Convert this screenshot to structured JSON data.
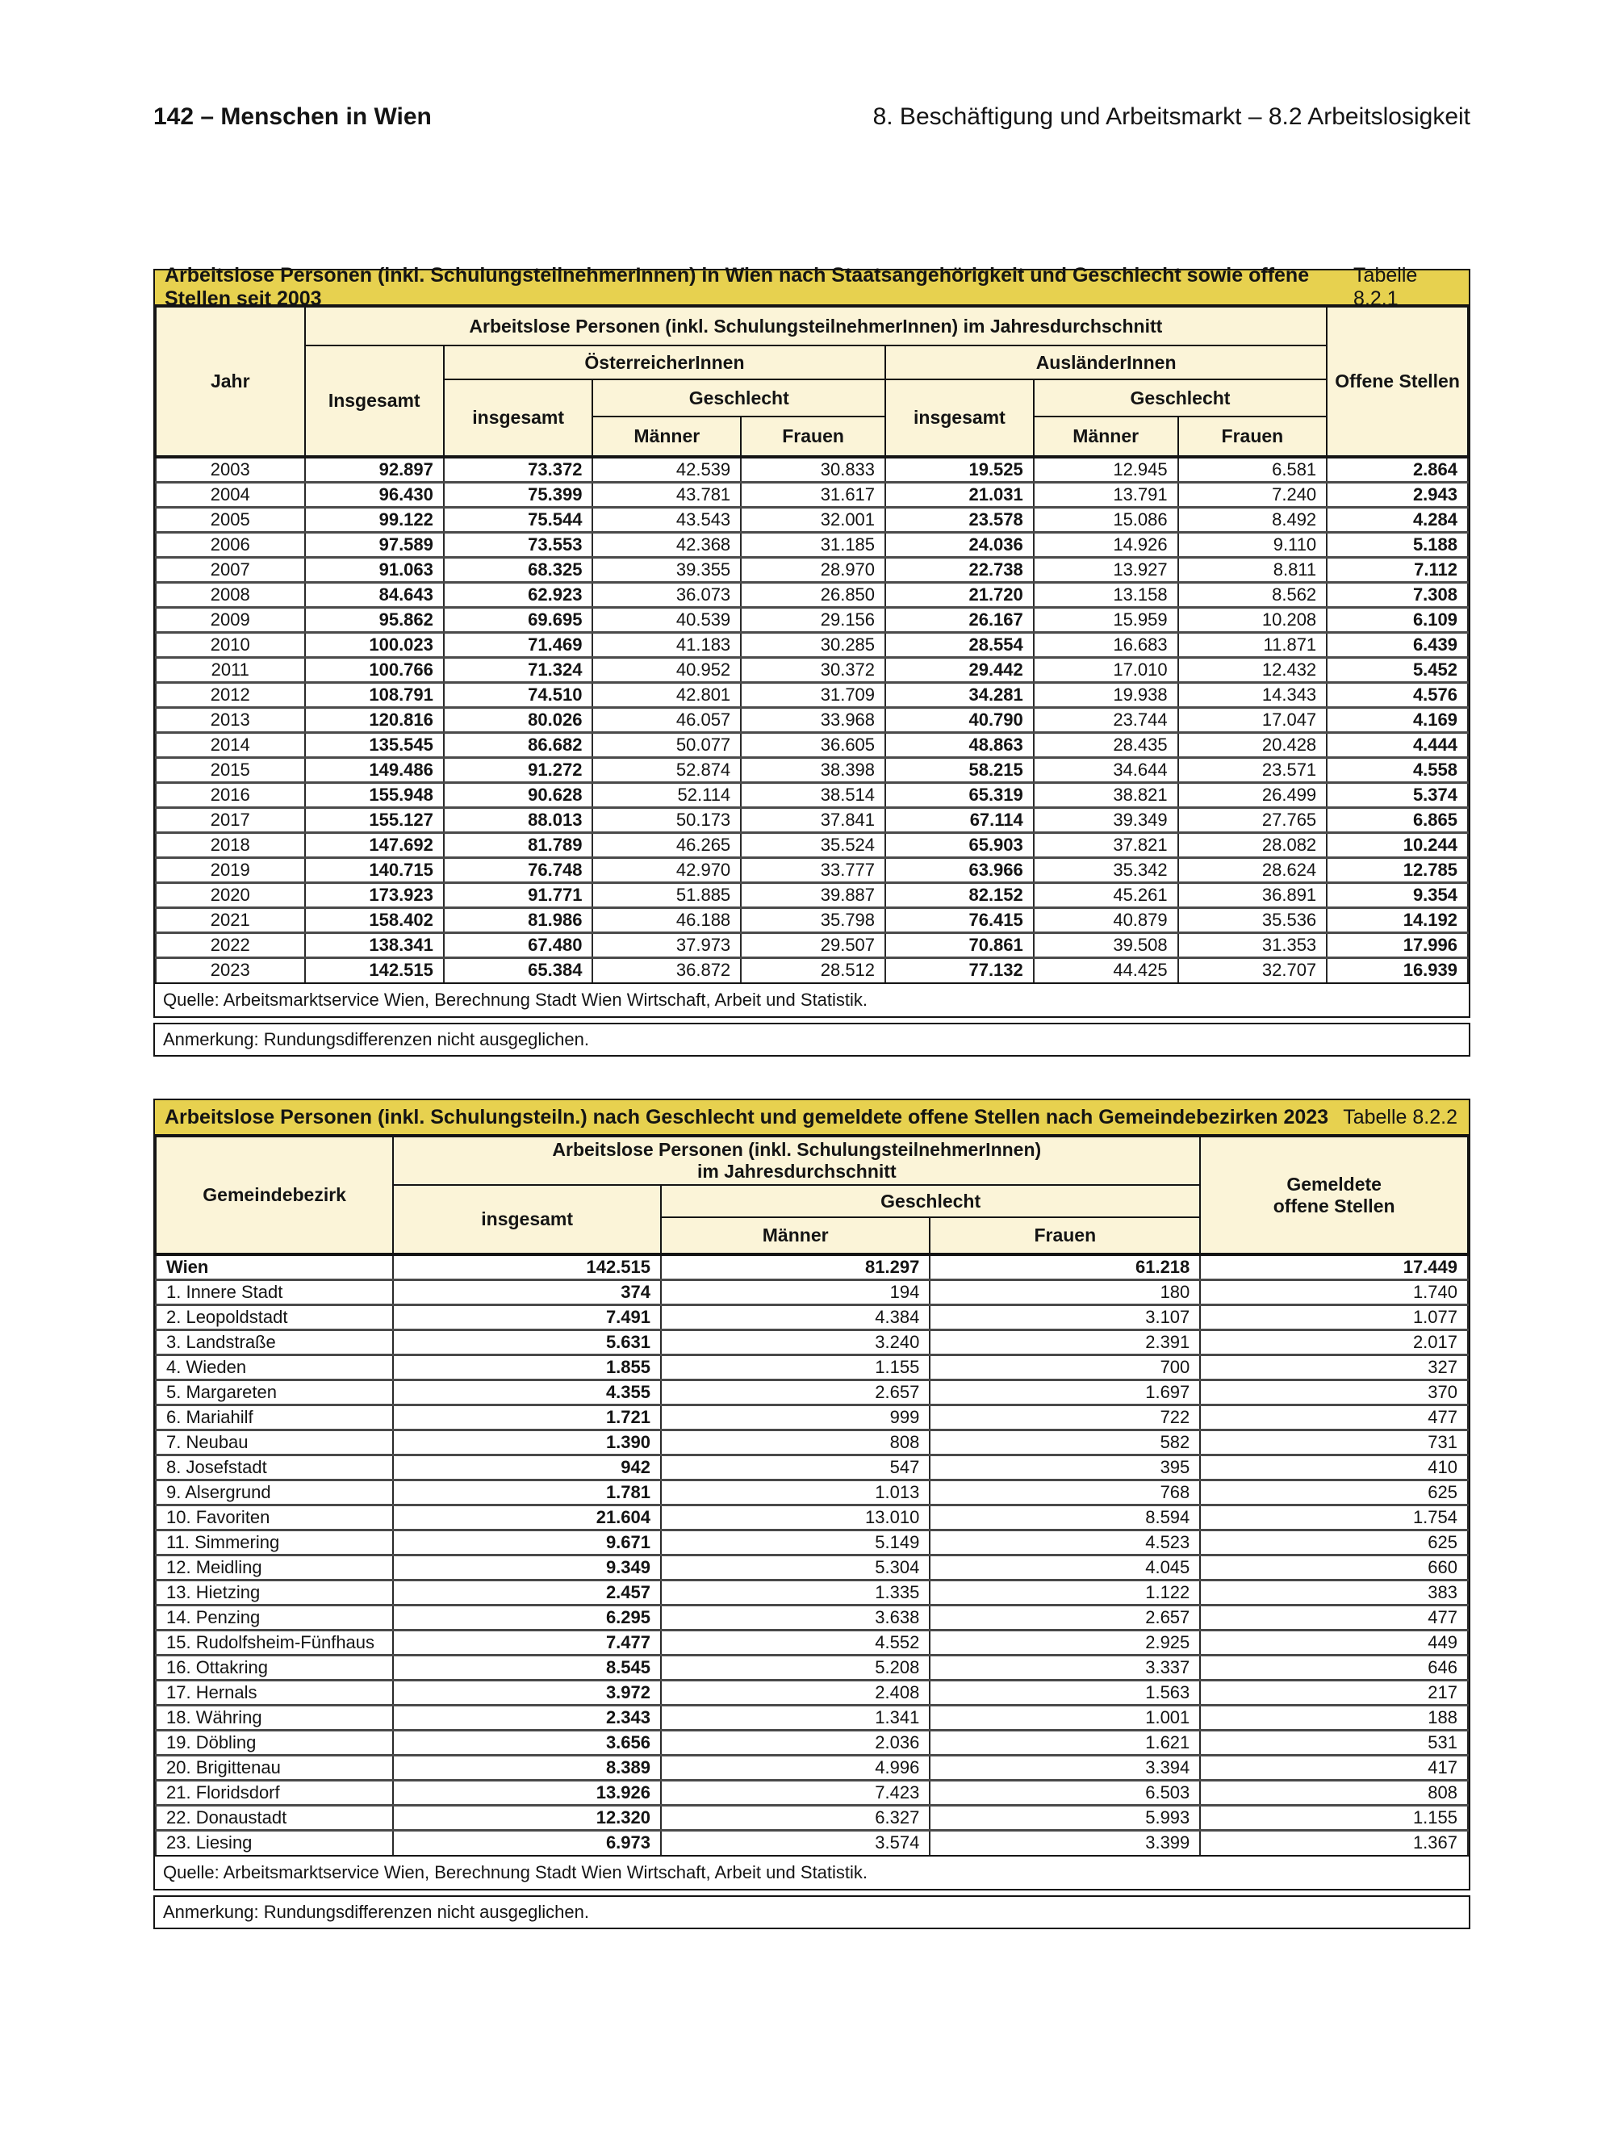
{
  "page": {
    "header_left": "142 – Menschen in Wien",
    "header_right": "8. Beschäftigung und Arbeitsmarkt – 8.2 Arbeitslosigkeit"
  },
  "colors": {
    "title_bar_yellow": "#E7D14F",
    "header_cream": "#FBF4D8"
  },
  "table1": {
    "title": "Arbeitslose Personen (inkl. SchulungsteilnehmerInnen) in Wien nach Staatsangehörigkeit und Geschlecht sowie offene Stellen seit 2003",
    "tag": "Tabelle 8.2.1",
    "headers": {
      "jahr": "Jahr",
      "span_main": "Arbeitslose Personen (inkl. SchulungsteilnehmerInnen) im Jahresdurchschnitt",
      "insgesamt": "Insgesamt",
      "oesterreicher": "ÖsterreicherInnen",
      "auslaender": "AusländerInnen",
      "sub_insgesamt": "insgesamt",
      "geschlecht": "Geschlecht",
      "maenner": "Männer",
      "frauen": "Frauen",
      "offene": "Offene Stellen"
    },
    "rows": [
      [
        "2003",
        "92.897",
        "73.372",
        "42.539",
        "30.833",
        "19.525",
        "12.945",
        "6.581",
        "2.864"
      ],
      [
        "2004",
        "96.430",
        "75.399",
        "43.781",
        "31.617",
        "21.031",
        "13.791",
        "7.240",
        "2.943"
      ],
      [
        "2005",
        "99.122",
        "75.544",
        "43.543",
        "32.001",
        "23.578",
        "15.086",
        "8.492",
        "4.284"
      ],
      [
        "2006",
        "97.589",
        "73.553",
        "42.368",
        "31.185",
        "24.036",
        "14.926",
        "9.110",
        "5.188"
      ],
      [
        "2007",
        "91.063",
        "68.325",
        "39.355",
        "28.970",
        "22.738",
        "13.927",
        "8.811",
        "7.112"
      ],
      [
        "2008",
        "84.643",
        "62.923",
        "36.073",
        "26.850",
        "21.720",
        "13.158",
        "8.562",
        "7.308"
      ],
      [
        "2009",
        "95.862",
        "69.695",
        "40.539",
        "29.156",
        "26.167",
        "15.959",
        "10.208",
        "6.109"
      ],
      [
        "2010",
        "100.023",
        "71.469",
        "41.183",
        "30.285",
        "28.554",
        "16.683",
        "11.871",
        "6.439"
      ],
      [
        "2011",
        "100.766",
        "71.324",
        "40.952",
        "30.372",
        "29.442",
        "17.010",
        "12.432",
        "5.452"
      ],
      [
        "2012",
        "108.791",
        "74.510",
        "42.801",
        "31.709",
        "34.281",
        "19.938",
        "14.343",
        "4.576"
      ],
      [
        "2013",
        "120.816",
        "80.026",
        "46.057",
        "33.968",
        "40.790",
        "23.744",
        "17.047",
        "4.169"
      ],
      [
        "2014",
        "135.545",
        "86.682",
        "50.077",
        "36.605",
        "48.863",
        "28.435",
        "20.428",
        "4.444"
      ],
      [
        "2015",
        "149.486",
        "91.272",
        "52.874",
        "38.398",
        "58.215",
        "34.644",
        "23.571",
        "4.558"
      ],
      [
        "2016",
        "155.948",
        "90.628",
        "52.114",
        "38.514",
        "65.319",
        "38.821",
        "26.499",
        "5.374"
      ],
      [
        "2017",
        "155.127",
        "88.013",
        "50.173",
        "37.841",
        "67.114",
        "39.349",
        "27.765",
        "6.865"
      ],
      [
        "2018",
        "147.692",
        "81.789",
        "46.265",
        "35.524",
        "65.903",
        "37.821",
        "28.082",
        "10.244"
      ],
      [
        "2019",
        "140.715",
        "76.748",
        "42.970",
        "33.777",
        "63.966",
        "35.342",
        "28.624",
        "12.785"
      ],
      [
        "2020",
        "173.923",
        "91.771",
        "51.885",
        "39.887",
        "82.152",
        "45.261",
        "36.891",
        "9.354"
      ],
      [
        "2021",
        "158.402",
        "81.986",
        "46.188",
        "35.798",
        "76.415",
        "40.879",
        "35.536",
        "14.192"
      ],
      [
        "2022",
        "138.341",
        "67.480",
        "37.973",
        "29.507",
        "70.861",
        "39.508",
        "31.353",
        "17.996"
      ],
      [
        "2023",
        "142.515",
        "65.384",
        "36.872",
        "28.512",
        "77.132",
        "44.425",
        "32.707",
        "16.939"
      ]
    ],
    "quelle": "Quelle: Arbeitsmarktservice Wien, Berechnung Stadt Wien Wirtschaft, Arbeit und Statistik.",
    "anmerkung": "Anmerkung: Rundungsdifferenzen nicht ausgeglichen."
  },
  "table2": {
    "title": "Arbeitslose Personen (inkl. Schulungsteiln.) nach Geschlecht und gemeldete offene Stellen nach Gemeindebezirken 2023",
    "tag": "Tabelle 8.2.2",
    "headers": {
      "gemeindebezirk": "Gemeindebezirk",
      "span_main": "Arbeitslose Personen (inkl. SchulungsteilnehmerInnen)\nim Jahresdurchschnitt",
      "sub_insgesamt": "insgesamt",
      "geschlecht": "Geschlecht",
      "maenner": "Männer",
      "frauen": "Frauen",
      "offene": "Gemeldete\noffene Stellen"
    },
    "rows": [
      [
        "Wien",
        "142.515",
        "81.297",
        "61.218",
        "17.449"
      ],
      [
        "1. Innere Stadt",
        "374",
        "194",
        "180",
        "1.740"
      ],
      [
        "2. Leopoldstadt",
        "7.491",
        "4.384",
        "3.107",
        "1.077"
      ],
      [
        "3. Landstraße",
        "5.631",
        "3.240",
        "2.391",
        "2.017"
      ],
      [
        "4. Wieden",
        "1.855",
        "1.155",
        "700",
        "327"
      ],
      [
        "5. Margareten",
        "4.355",
        "2.657",
        "1.697",
        "370"
      ],
      [
        "6. Mariahilf",
        "1.721",
        "999",
        "722",
        "477"
      ],
      [
        "7. Neubau",
        "1.390",
        "808",
        "582",
        "731"
      ],
      [
        "8. Josefstadt",
        "942",
        "547",
        "395",
        "410"
      ],
      [
        "9. Alsergrund",
        "1.781",
        "1.013",
        "768",
        "625"
      ],
      [
        "10. Favoriten",
        "21.604",
        "13.010",
        "8.594",
        "1.754"
      ],
      [
        "11. Simmering",
        "9.671",
        "5.149",
        "4.523",
        "625"
      ],
      [
        "12. Meidling",
        "9.349",
        "5.304",
        "4.045",
        "660"
      ],
      [
        "13. Hietzing",
        "2.457",
        "1.335",
        "1.122",
        "383"
      ],
      [
        "14. Penzing",
        "6.295",
        "3.638",
        "2.657",
        "477"
      ],
      [
        "15. Rudolfsheim-Fünfhaus",
        "7.477",
        "4.552",
        "2.925",
        "449"
      ],
      [
        "16. Ottakring",
        "8.545",
        "5.208",
        "3.337",
        "646"
      ],
      [
        "17. Hernals",
        "3.972",
        "2.408",
        "1.563",
        "217"
      ],
      [
        "18. Währing",
        "2.343",
        "1.341",
        "1.001",
        "188"
      ],
      [
        "19. Döbling",
        "3.656",
        "2.036",
        "1.621",
        "531"
      ],
      [
        "20. Brigittenau",
        "8.389",
        "4.996",
        "3.394",
        "417"
      ],
      [
        "21. Floridsdorf",
        "13.926",
        "7.423",
        "6.503",
        "808"
      ],
      [
        "22. Donaustadt",
        "12.320",
        "6.327",
        "5.993",
        "1.155"
      ],
      [
        "23. Liesing",
        "6.973",
        "3.574",
        "3.399",
        "1.367"
      ]
    ],
    "quelle": "Quelle: Arbeitsmarktservice Wien, Berechnung Stadt Wien Wirtschaft, Arbeit und Statistik.",
    "anmerkung": "Anmerkung: Rundungsdifferenzen nicht ausgeglichen."
  }
}
